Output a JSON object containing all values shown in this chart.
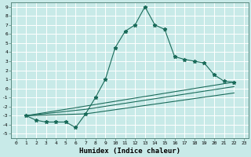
{
  "xlabel": "Humidex (Indice chaleur)",
  "background_color": "#c8eae8",
  "grid_color": "#b0d8d4",
  "line_color": "#1a6b5a",
  "xlim": [
    -0.5,
    23.5
  ],
  "ylim": [
    -5.5,
    9.5
  ],
  "xticks": [
    0,
    1,
    2,
    3,
    4,
    5,
    6,
    7,
    8,
    9,
    10,
    11,
    12,
    13,
    14,
    15,
    16,
    17,
    18,
    19,
    20,
    21,
    22,
    23
  ],
  "yticks": [
    -5,
    -4,
    -3,
    -2,
    -1,
    0,
    1,
    2,
    3,
    4,
    5,
    6,
    7,
    8,
    9
  ],
  "line1_x": [
    1,
    2,
    3,
    4,
    5,
    6,
    7,
    8,
    9,
    10,
    11,
    12,
    13,
    14,
    15,
    16,
    17,
    18,
    19,
    20,
    21,
    22
  ],
  "line1_y": [
    -3,
    -3.5,
    -3.7,
    -3.7,
    -3.7,
    -4.3,
    -2.8,
    -1,
    1,
    4.5,
    6.3,
    7.0,
    9.0,
    7.0,
    6.5,
    3.5,
    3.2,
    3.0,
    2.8,
    1.5,
    0.8,
    0.7
  ],
  "line2_x": [
    1,
    22
  ],
  "line2_y": [
    -3.0,
    0.7
  ],
  "line3_x": [
    1,
    7,
    22
  ],
  "line3_y": [
    -3.0,
    -2.8,
    -0.5
  ],
  "line4_x": [
    1,
    7,
    22
  ],
  "line4_y": [
    -3.0,
    -2.3,
    0.2
  ]
}
